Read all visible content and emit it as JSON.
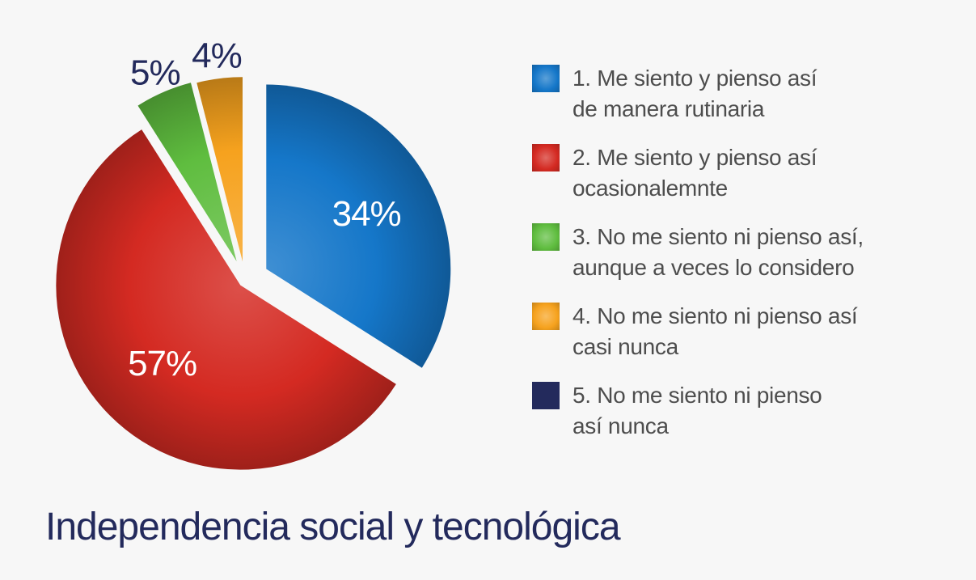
{
  "chart_data": {
    "type": "pie",
    "title": "Independencia social y tecnológica",
    "slices": [
      {
        "label": "1. Me siento y pienso así de manera rutinaria",
        "lines": [
          "1. Me siento y pienso así",
          "de manera rutinaria"
        ],
        "value": 34,
        "value_label": "34%",
        "color": "#1577c9",
        "label_placement": "inside"
      },
      {
        "label": "2. Me siento y pienso así ocasionalemnte",
        "lines": [
          "2. Me siento y pienso así",
          "ocasionalemnte"
        ],
        "value": 57,
        "value_label": "57%",
        "color": "#d42a22",
        "label_placement": "inside"
      },
      {
        "label": "3. No me siento ni pienso así, aunque a veces lo considero",
        "lines": [
          "3. No me siento ni pienso así,",
          "aunque a veces lo considero"
        ],
        "value": 5,
        "value_label": "5%",
        "color": "#5fbd3f",
        "label_placement": "outside"
      },
      {
        "label": "4. No me siento ni pienso así casi nunca",
        "lines": [
          "4. No me siento ni pienso así",
          "casi nunca"
        ],
        "value": 4,
        "value_label": "4%",
        "color": "#f6a21e",
        "label_placement": "outside"
      },
      {
        "label": "5. No me siento ni pienso así nunca",
        "lines": [
          "5. No me siento ni pienso",
          "así nunca"
        ],
        "value": 0,
        "value_label": "",
        "color": "#232a5c",
        "label_placement": "none"
      }
    ],
    "start_angle_deg": 0,
    "direction": "clockwise",
    "exploded": true,
    "legend_position": "right"
  }
}
